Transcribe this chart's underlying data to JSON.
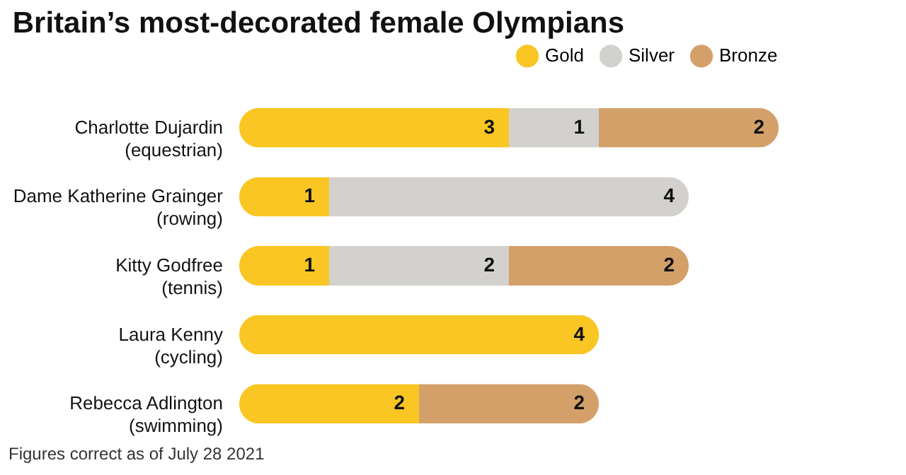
{
  "chart_data": {
    "type": "bar",
    "orientation": "horizontal",
    "stacked": true,
    "data_labels": true,
    "legend": "top right",
    "title": "Britain’s most-decorated female Olympians",
    "categories": [
      "Charlotte Dujardin\n(equestrian)",
      "Dame Katherine Grainger\n(rowing)",
      "Kitty Godfree\n(tennis)",
      "Laura Kenny\n(cycling)",
      "Rebecca Adlington\n(swimming)"
    ],
    "series": [
      {
        "name": "Gold",
        "color": "#f9c623",
        "values": [
          3,
          1,
          1,
          4,
          2
        ]
      },
      {
        "name": "Silver",
        "color": "#d3d1ce",
        "values": [
          1,
          4,
          2,
          null,
          null
        ]
      },
      {
        "name": "Bronze",
        "color": "#d4a06a",
        "values": [
          2,
          null,
          2,
          null,
          2
        ]
      }
    ],
    "annotations": [
      "Figures correct as of July 28 2021"
    ]
  }
}
